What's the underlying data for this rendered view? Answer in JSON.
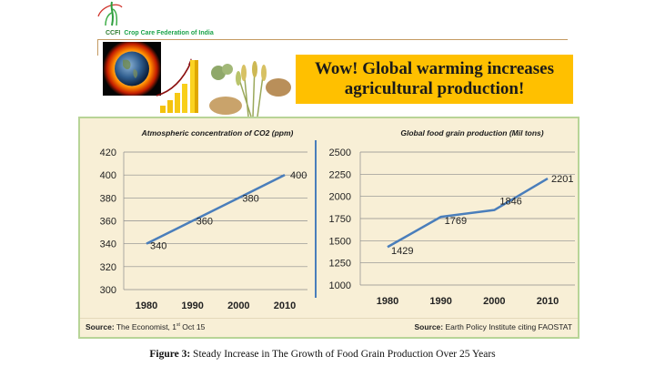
{
  "header": {
    "logo_abbr": "CCFI",
    "logo_name": "Crop Care Federation of India",
    "banner_line1": "Wow! Global warming increases",
    "banner_line2": "agricultural production!"
  },
  "colors": {
    "banner": "#ffc000",
    "panel_bg": "#f8efd6",
    "panel_border": "#b8d497",
    "line": "#4a7ebb",
    "rule": "#c49a62",
    "logo_green": "#1aa34a"
  },
  "sources": {
    "left_label": "Source:",
    "left_text": " The Economist, 1",
    "left_sup": "st",
    "left_tail": " Oct 15",
    "right_label": "Source:",
    "right_text": " Earth Policy Institute citing FAOSTAT"
  },
  "caption": {
    "label": "Figure 3:",
    "text": " Steady Increase in The Growth of Food Grain Production Over 25 Years"
  },
  "chart_data": [
    {
      "type": "line",
      "title": "Atmospheric concentration of CO2 (ppm)",
      "xlabel": "",
      "ylabel": "",
      "categories": [
        "1980",
        "1990",
        "2000",
        "2010"
      ],
      "values": [
        340,
        360,
        380,
        400
      ],
      "data_labels": [
        "340",
        "360",
        "380",
        "400"
      ],
      "ylim": [
        300,
        420
      ],
      "yticks": [
        300,
        320,
        340,
        360,
        380,
        400,
        420
      ],
      "grid": true,
      "legend": "none"
    },
    {
      "type": "line",
      "title": "Global food grain production (Mil tons)",
      "xlabel": "",
      "ylabel": "",
      "categories": [
        "1980",
        "1990",
        "2000",
        "2010"
      ],
      "values": [
        1429,
        1769,
        1846,
        2201
      ],
      "data_labels": [
        "1429",
        "1769",
        "1846",
        "2201"
      ],
      "ylim": [
        1000,
        2500
      ],
      "yticks": [
        1000,
        1250,
        1500,
        1750,
        2000,
        2250,
        2500
      ],
      "grid": true,
      "legend": "none"
    }
  ]
}
